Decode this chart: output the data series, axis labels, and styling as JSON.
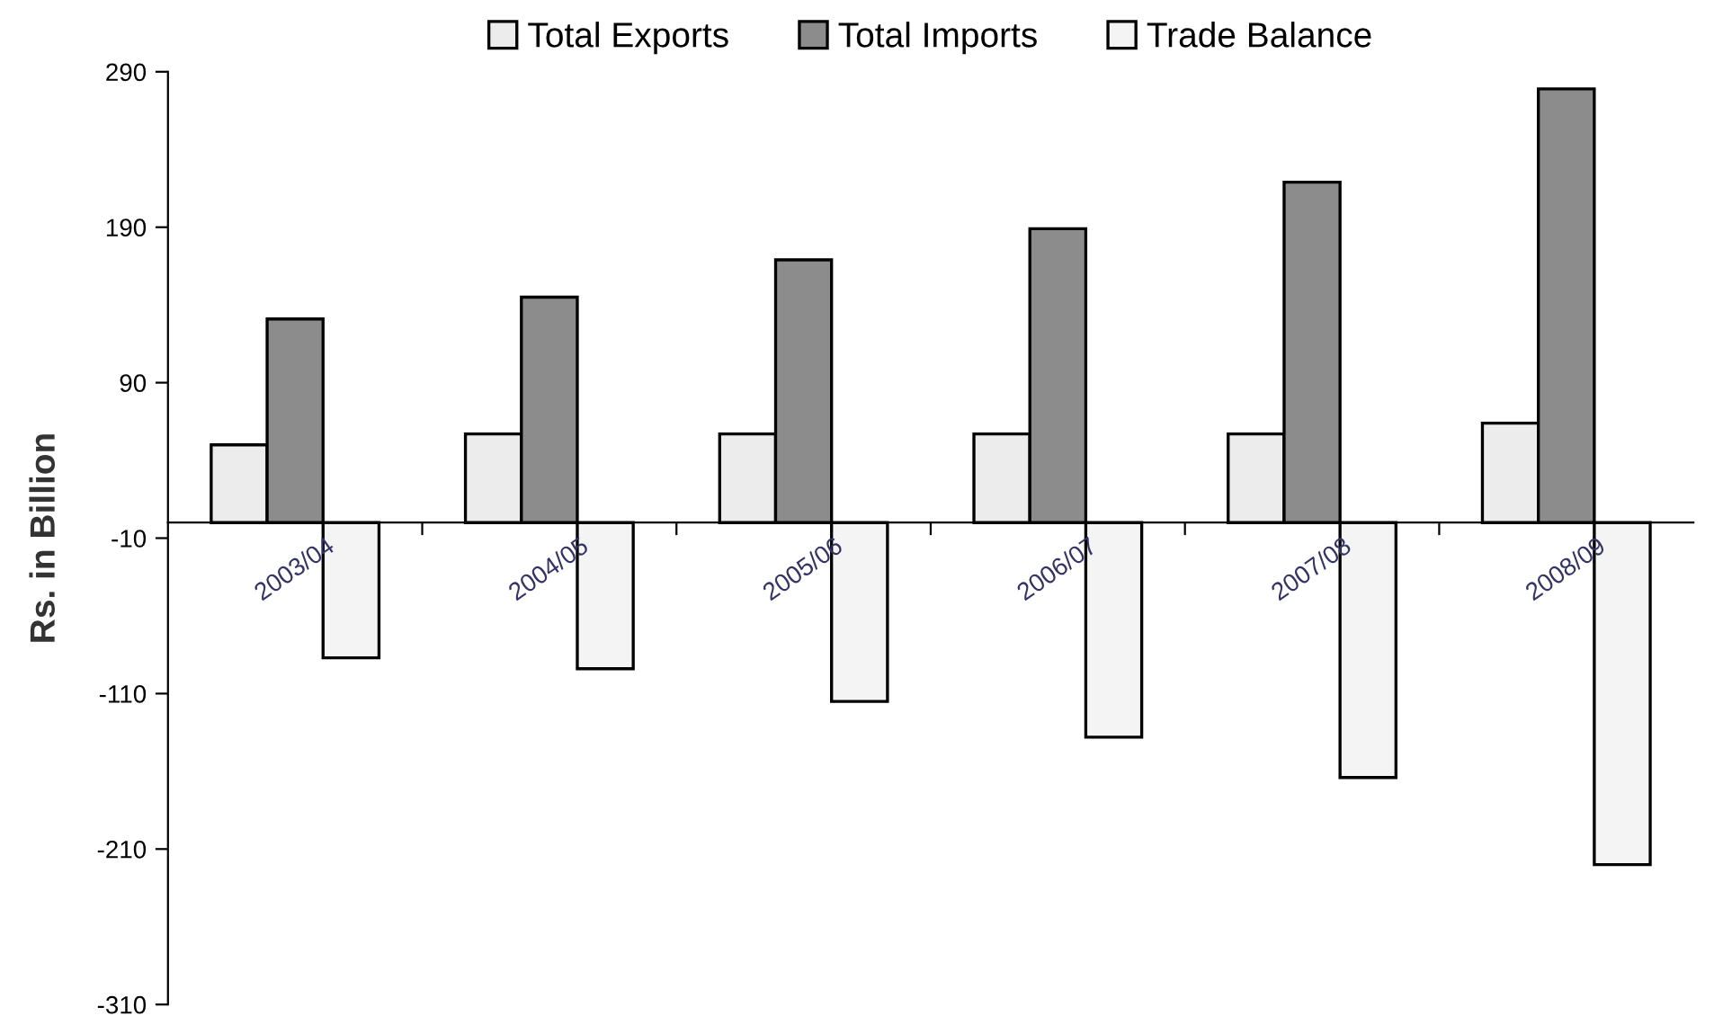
{
  "chart_data": {
    "type": "bar",
    "ylabel": "Rs. in Billion",
    "categories": [
      "2003/04",
      "2004/05",
      "2005/06",
      "2006/07",
      "2007/08",
      "2008/09"
    ],
    "series": [
      {
        "name": "Total Exports",
        "color": "#ececec",
        "values": [
          50,
          57,
          57,
          57,
          57,
          64
        ]
      },
      {
        "name": "Total Imports",
        "color": "#8c8c8c",
        "values": [
          131,
          145,
          169,
          189,
          219,
          279
        ]
      },
      {
        "name": "Trade Balance",
        "color": "#f4f4f4",
        "values": [
          -87,
          -94,
          -115,
          -138,
          -164,
          -220
        ]
      }
    ],
    "ylim": [
      -310,
      290
    ],
    "yticks": [
      290,
      190,
      90,
      -10,
      -110,
      -210,
      -310
    ],
    "grid": false,
    "legend": "top"
  }
}
